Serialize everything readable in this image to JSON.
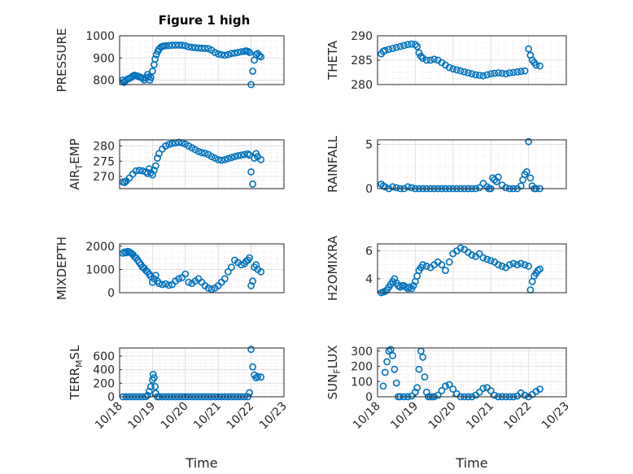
{
  "figure": {
    "title": "Figure 1 high",
    "marker_color": "#0072BD",
    "grid": "on",
    "minor_grid": "on"
  },
  "chart_data": [
    {
      "type": "scatter",
      "marker": "open-circle",
      "ylabel": "PRESSURE",
      "title": "Figure 1 high",
      "yticks": [
        "800",
        "900",
        "1000"
      ],
      "ylim": [
        780,
        1000
      ],
      "xticks": [],
      "xlim": [
        0,
        5
      ],
      "xlabel": "",
      "x": [
        0.1,
        0.13,
        0.16,
        0.2,
        0.25,
        0.3,
        0.35,
        0.4,
        0.45,
        0.5,
        0.55,
        0.6,
        0.65,
        0.7,
        0.75,
        0.8,
        0.85,
        0.88,
        0.92,
        0.95,
        1.0,
        1.05,
        1.08,
        1.12,
        1.16,
        1.2,
        1.25,
        1.3,
        1.35,
        1.4,
        1.5,
        1.6,
        1.7,
        1.8,
        1.9,
        2.0,
        2.1,
        2.2,
        2.3,
        2.4,
        2.5,
        2.6,
        2.7,
        2.8,
        2.9,
        3.0,
        3.1,
        3.2,
        3.3,
        3.4,
        3.5,
        3.6,
        3.7,
        3.8,
        3.85,
        3.9,
        3.95,
        4.0,
        4.05,
        4.1,
        4.15,
        4.2,
        4.25,
        4.3
      ],
      "y": [
        800,
        790,
        795,
        800,
        805,
        808,
        812,
        818,
        822,
        820,
        818,
        815,
        812,
        808,
        800,
        810,
        825,
        815,
        800,
        812,
        840,
        870,
        895,
        915,
        930,
        940,
        948,
        952,
        954,
        955,
        956,
        957,
        958,
        958,
        957,
        955,
        950,
        948,
        946,
        945,
        944,
        943,
        942,
        935,
        925,
        918,
        915,
        912,
        915,
        920,
        922,
        925,
        928,
        930,
        932,
        930,
        925,
        780,
        840,
        890,
        915,
        920,
        910,
        905
      ]
    },
    {
      "type": "scatter",
      "marker": "open-circle",
      "ylabel": "THETA",
      "yticks": [
        "280",
        "285",
        "290"
      ],
      "ylim": [
        280,
        290
      ],
      "xticks": [],
      "xlim": [
        0,
        5
      ],
      "xlabel": "",
      "x": [
        0.1,
        0.15,
        0.2,
        0.3,
        0.4,
        0.5,
        0.6,
        0.7,
        0.8,
        0.9,
        1.0,
        1.05,
        1.1,
        1.15,
        1.2,
        1.3,
        1.4,
        1.5,
        1.6,
        1.7,
        1.8,
        1.9,
        2.0,
        2.1,
        2.2,
        2.3,
        2.4,
        2.5,
        2.6,
        2.7,
        2.8,
        2.9,
        3.0,
        3.1,
        3.2,
        3.3,
        3.4,
        3.5,
        3.6,
        3.7,
        3.8,
        3.9,
        4.0,
        4.05,
        4.1,
        4.15,
        4.2,
        4.3
      ],
      "y": [
        286.3,
        286.8,
        287.0,
        287.2,
        287.4,
        287.6,
        287.8,
        288.0,
        288.2,
        288.3,
        288.2,
        287.8,
        286.5,
        285.8,
        285.4,
        285.0,
        285.0,
        285.2,
        285.0,
        284.5,
        284.0,
        283.5,
        283.2,
        283.0,
        282.8,
        282.6,
        282.4,
        282.2,
        282.0,
        281.9,
        281.8,
        282.0,
        282.2,
        282.3,
        282.4,
        282.3,
        282.2,
        282.4,
        282.5,
        282.6,
        282.7,
        282.8,
        287.3,
        286.0,
        285.0,
        284.5,
        284.0,
        283.8
      ]
    },
    {
      "type": "scatter",
      "marker": "open-circle",
      "ylabel": "AIR_TEMP",
      "ylabel_parts": {
        "before": "AIR",
        "sub": "T",
        "after": "EMP"
      },
      "yticks": [
        "270",
        "275",
        "280"
      ],
      "ylim": [
        266,
        282
      ],
      "xticks": [],
      "xlim": [
        0,
        5
      ],
      "xlabel": "",
      "x": [
        0.1,
        0.15,
        0.2,
        0.3,
        0.4,
        0.5,
        0.6,
        0.7,
        0.8,
        0.85,
        0.9,
        0.95,
        1.0,
        1.05,
        1.1,
        1.15,
        1.2,
        1.3,
        1.4,
        1.5,
        1.6,
        1.7,
        1.8,
        1.9,
        2.0,
        2.1,
        2.2,
        2.3,
        2.4,
        2.5,
        2.6,
        2.7,
        2.8,
        2.9,
        3.0,
        3.1,
        3.2,
        3.3,
        3.4,
        3.5,
        3.6,
        3.7,
        3.8,
        3.9,
        3.95,
        4.0,
        4.05,
        4.1,
        4.15,
        4.2,
        4.3
      ],
      "y": [
        268.2,
        268.0,
        268.5,
        269.5,
        270.8,
        271.8,
        272.0,
        271.8,
        271.5,
        271.0,
        272.5,
        271.2,
        270.5,
        272.0,
        273.5,
        276.0,
        277.5,
        279.0,
        280.0,
        280.5,
        280.8,
        281.0,
        281.2,
        281.0,
        280.6,
        280.0,
        279.4,
        278.8,
        278.2,
        277.8,
        277.6,
        277.2,
        276.5,
        276.0,
        275.5,
        275.3,
        275.5,
        275.8,
        276.2,
        276.5,
        276.8,
        277.0,
        277.2,
        277.4,
        277.0,
        271.5,
        267.5,
        276.0,
        277.5,
        276.5,
        275.5
      ]
    },
    {
      "type": "scatter",
      "marker": "open-circle",
      "ylabel": "RAINFALL",
      "yticks": [
        "0",
        "5"
      ],
      "ylim": [
        0,
        5.5
      ],
      "xticks": [],
      "xlim": [
        0,
        5
      ],
      "xlabel": "",
      "x": [
        0.1,
        0.15,
        0.2,
        0.3,
        0.4,
        0.5,
        0.6,
        0.7,
        0.8,
        0.9,
        1.0,
        1.1,
        1.2,
        1.3,
        1.4,
        1.5,
        1.6,
        1.7,
        1.8,
        1.9,
        2.0,
        2.1,
        2.2,
        2.3,
        2.4,
        2.5,
        2.6,
        2.7,
        2.8,
        2.9,
        2.95,
        3.0,
        3.05,
        3.1,
        3.15,
        3.2,
        3.3,
        3.4,
        3.5,
        3.6,
        3.7,
        3.8,
        3.85,
        3.9,
        3.95,
        4.0,
        4.05,
        4.1,
        4.15,
        4.2,
        4.3
      ],
      "y": [
        0.5,
        0.3,
        0.2,
        0.0,
        0.2,
        0.1,
        0.0,
        0.0,
        0.2,
        0.1,
        0.0,
        0.0,
        0.0,
        0.0,
        0.0,
        0.0,
        0.0,
        0.0,
        0.0,
        0.0,
        0.0,
        0.0,
        0.0,
        0.0,
        0.0,
        0.0,
        0.0,
        0.1,
        0.6,
        0.2,
        0.0,
        0.0,
        1.2,
        1.0,
        0.8,
        1.3,
        0.4,
        0.1,
        0.0,
        0.0,
        0.0,
        0.3,
        1.0,
        1.6,
        1.9,
        5.3,
        1.2,
        0.3,
        0.0,
        0.0,
        0.0
      ]
    },
    {
      "type": "scatter",
      "marker": "open-circle",
      "ylabel": "MIXDEPTH",
      "yticks": [
        "0",
        "1000",
        "2000"
      ],
      "ylim": [
        0,
        2100
      ],
      "xticks": [],
      "xlim": [
        0,
        5
      ],
      "xlabel": "",
      "x": [
        0.1,
        0.15,
        0.2,
        0.25,
        0.3,
        0.35,
        0.4,
        0.45,
        0.5,
        0.55,
        0.6,
        0.65,
        0.7,
        0.75,
        0.8,
        0.85,
        0.9,
        0.95,
        1.0,
        1.05,
        1.1,
        1.15,
        1.2,
        1.3,
        1.4,
        1.5,
        1.6,
        1.7,
        1.8,
        1.9,
        2.0,
        2.1,
        2.2,
        2.3,
        2.4,
        2.5,
        2.6,
        2.7,
        2.8,
        2.9,
        3.0,
        3.1,
        3.2,
        3.3,
        3.4,
        3.5,
        3.6,
        3.7,
        3.8,
        3.85,
        3.9,
        3.95,
        4.0,
        4.05,
        4.1,
        4.15,
        4.2,
        4.3
      ],
      "y": [
        1700,
        1750,
        1720,
        1780,
        1750,
        1700,
        1650,
        1550,
        1500,
        1400,
        1300,
        1200,
        1100,
        1050,
        950,
        900,
        800,
        700,
        450,
        600,
        750,
        500,
        400,
        350,
        380,
        320,
        350,
        500,
        600,
        650,
        800,
        450,
        400,
        500,
        600,
        450,
        300,
        200,
        150,
        200,
        300,
        450,
        600,
        900,
        1100,
        1400,
        1300,
        1200,
        1250,
        1350,
        1400,
        1500,
        300,
        500,
        1100,
        1200,
        1000,
        900
      ]
    },
    {
      "type": "scatter",
      "marker": "open-circle",
      "ylabel": "H2OMIXRA",
      "yticks": [
        "4",
        "6"
      ],
      "ylim": [
        3,
        6.5
      ],
      "xticks": [],
      "xlim": [
        0,
        5
      ],
      "xlabel": "",
      "x": [
        0.1,
        0.15,
        0.2,
        0.25,
        0.3,
        0.35,
        0.4,
        0.45,
        0.5,
        0.55,
        0.6,
        0.65,
        0.7,
        0.75,
        0.8,
        0.85,
        0.9,
        0.95,
        1.0,
        1.05,
        1.1,
        1.15,
        1.2,
        1.3,
        1.4,
        1.5,
        1.6,
        1.7,
        1.8,
        1.9,
        2.0,
        2.1,
        2.2,
        2.3,
        2.4,
        2.5,
        2.6,
        2.7,
        2.8,
        2.9,
        3.0,
        3.1,
        3.2,
        3.3,
        3.4,
        3.5,
        3.6,
        3.7,
        3.8,
        3.9,
        4.0,
        4.05,
        4.1,
        4.15,
        4.2,
        4.25,
        4.3
      ],
      "y": [
        3.0,
        3.05,
        3.1,
        3.2,
        3.4,
        3.6,
        3.8,
        4.0,
        3.7,
        3.5,
        3.4,
        3.5,
        3.5,
        3.4,
        3.3,
        3.4,
        3.3,
        3.5,
        3.8,
        4.2,
        4.6,
        4.8,
        5.0,
        4.9,
        4.8,
        5.0,
        5.2,
        5.0,
        4.6,
        5.2,
        5.8,
        6.0,
        6.2,
        6.1,
        5.9,
        5.7,
        5.6,
        5.8,
        5.5,
        5.4,
        5.3,
        5.2,
        5.0,
        4.9,
        4.8,
        5.0,
        5.1,
        5.0,
        5.1,
        5.0,
        4.9,
        3.2,
        3.8,
        4.2,
        4.4,
        4.6,
        4.7
      ]
    },
    {
      "type": "scatter",
      "marker": "open-circle",
      "ylabel": "TERR_MSL",
      "ylabel_parts": {
        "before": "TERR",
        "sub": "M",
        "after": "SL"
      },
      "yticks": [
        "0",
        "200",
        "400",
        "600"
      ],
      "ylim": [
        0,
        720
      ],
      "xticks": [
        "10/18",
        "10/19",
        "10/20",
        "10/21",
        "10/22",
        "10/23"
      ],
      "xlim": [
        0,
        5
      ],
      "xlabel": "Time",
      "x": [
        0.1,
        0.2,
        0.3,
        0.4,
        0.5,
        0.6,
        0.7,
        0.8,
        0.85,
        0.9,
        0.95,
        1.0,
        1.02,
        1.05,
        1.08,
        1.1,
        1.15,
        1.2,
        1.3,
        1.4,
        1.5,
        1.6,
        1.7,
        1.8,
        1.9,
        2.0,
        2.1,
        2.2,
        2.3,
        2.4,
        2.5,
        2.6,
        2.7,
        2.8,
        2.9,
        3.0,
        3.1,
        3.2,
        3.3,
        3.4,
        3.5,
        3.6,
        3.7,
        3.8,
        3.9,
        3.95,
        4.0,
        4.05,
        4.1,
        4.15,
        4.2,
        4.3
      ],
      "y": [
        0,
        0,
        0,
        0,
        0,
        0,
        0,
        0,
        20,
        80,
        150,
        250,
        330,
        280,
        150,
        50,
        0,
        0,
        0,
        0,
        0,
        0,
        0,
        0,
        0,
        0,
        0,
        0,
        0,
        0,
        0,
        0,
        0,
        0,
        0,
        0,
        0,
        0,
        0,
        0,
        0,
        0,
        0,
        0,
        0,
        60,
        700,
        440,
        320,
        280,
        300,
        290
      ]
    },
    {
      "type": "scatter",
      "marker": "open-circle",
      "ylabel": "SUN_FLUX",
      "ylabel_parts": {
        "before": "SUN",
        "sub": "F",
        "after": "LUX"
      },
      "yticks": [
        "0",
        "100",
        "200",
        "300"
      ],
      "ylim": [
        0,
        320
      ],
      "xticks": [
        "10/18",
        "10/19",
        "10/20",
        "10/21",
        "10/22",
        "10/23"
      ],
      "xlim": [
        0,
        5
      ],
      "xlabel": "Time",
      "x": [
        0.15,
        0.2,
        0.25,
        0.3,
        0.35,
        0.4,
        0.45,
        0.5,
        0.55,
        0.6,
        0.7,
        0.8,
        0.9,
        1.0,
        1.05,
        1.1,
        1.15,
        1.2,
        1.25,
        1.3,
        1.35,
        1.4,
        1.45,
        1.5,
        1.6,
        1.7,
        1.8,
        1.9,
        2.0,
        2.1,
        2.2,
        2.3,
        2.4,
        2.5,
        2.6,
        2.7,
        2.8,
        2.9,
        3.0,
        3.1,
        3.2,
        3.3,
        3.4,
        3.5,
        3.6,
        3.7,
        3.8,
        3.9,
        4.0,
        4.1,
        4.2,
        4.3
      ],
      "y": [
        70,
        160,
        230,
        300,
        310,
        270,
        180,
        90,
        0,
        0,
        0,
        0,
        5,
        30,
        60,
        180,
        300,
        260,
        130,
        30,
        0,
        0,
        0,
        0,
        10,
        40,
        70,
        80,
        50,
        20,
        0,
        0,
        0,
        0,
        10,
        30,
        55,
        60,
        40,
        10,
        0,
        0,
        0,
        0,
        0,
        5,
        25,
        10,
        0,
        15,
        35,
        50
      ]
    }
  ]
}
